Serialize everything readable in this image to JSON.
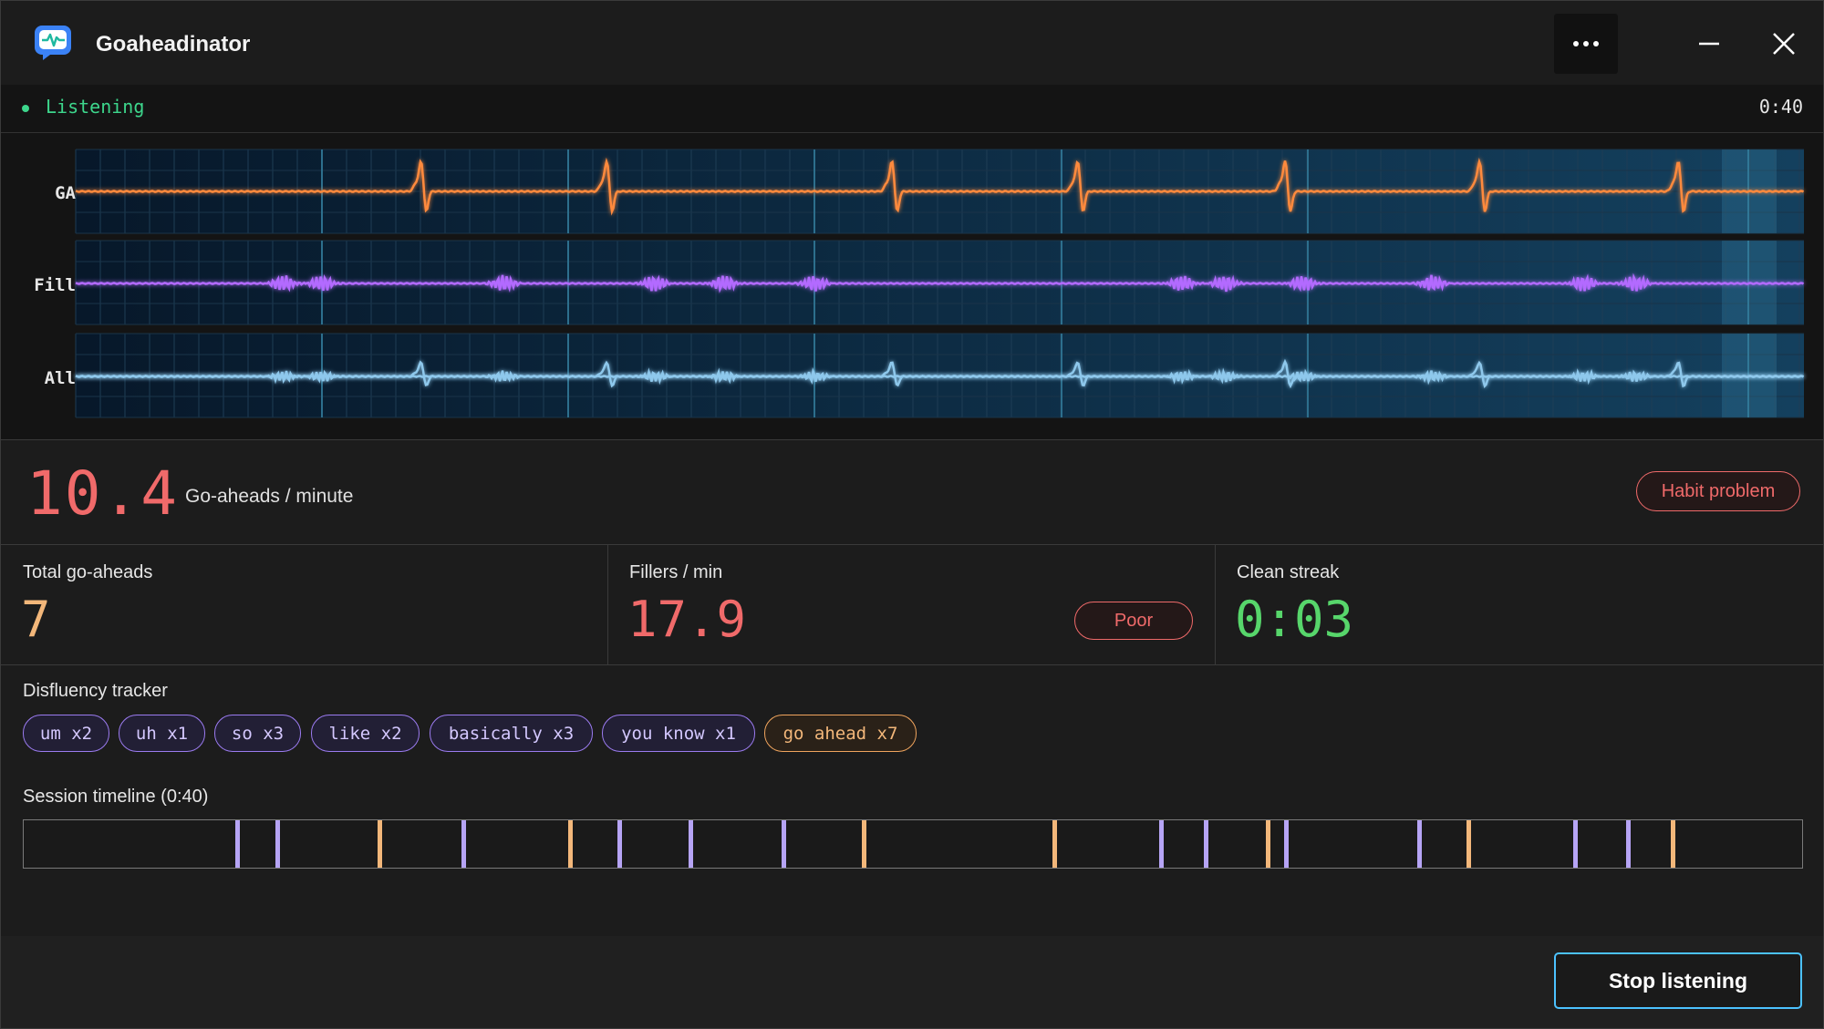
{
  "app": {
    "title": "Goaheadinator"
  },
  "status": {
    "text": "Listening",
    "elapsed": "0:40"
  },
  "monitor": {
    "channels": [
      {
        "label": "GA",
        "color": "#ff8a3d"
      },
      {
        "label": "Fill",
        "color": "#b36bff"
      },
      {
        "label": "All",
        "color": "#8ec8ec"
      }
    ]
  },
  "rate": {
    "value": "10.4",
    "label": "Go-aheads / minute",
    "badge": "Habit problem"
  },
  "stats": {
    "total": {
      "label": "Total go-aheads",
      "value": "7"
    },
    "fillers": {
      "label": "Fillers / min",
      "value": "17.9",
      "badge": "Poor"
    },
    "streak": {
      "label": "Clean streak",
      "value": "0:03"
    }
  },
  "disfluency": {
    "label": "Disfluency tracker",
    "chips": [
      {
        "text": "um x2",
        "kind": "filler"
      },
      {
        "text": "uh x1",
        "kind": "filler"
      },
      {
        "text": "so x3",
        "kind": "filler"
      },
      {
        "text": "like x2",
        "kind": "filler"
      },
      {
        "text": "basically x3",
        "kind": "filler"
      },
      {
        "text": "you know x1",
        "kind": "filler"
      },
      {
        "text": "go ahead x7",
        "kind": "goahead"
      }
    ]
  },
  "timeline": {
    "label": "Session timeline (0:40)",
    "duration_s": 40,
    "events": [
      {
        "t": 4.8,
        "kind": "filler"
      },
      {
        "t": 5.7,
        "kind": "filler"
      },
      {
        "t": 8.0,
        "kind": "goahead"
      },
      {
        "t": 9.9,
        "kind": "filler"
      },
      {
        "t": 12.3,
        "kind": "goahead"
      },
      {
        "t": 13.4,
        "kind": "filler"
      },
      {
        "t": 15.0,
        "kind": "filler"
      },
      {
        "t": 17.1,
        "kind": "filler"
      },
      {
        "t": 18.9,
        "kind": "goahead"
      },
      {
        "t": 23.2,
        "kind": "goahead"
      },
      {
        "t": 25.6,
        "kind": "filler"
      },
      {
        "t": 26.6,
        "kind": "filler"
      },
      {
        "t": 28.0,
        "kind": "goahead"
      },
      {
        "t": 28.4,
        "kind": "filler"
      },
      {
        "t": 31.4,
        "kind": "filler"
      },
      {
        "t": 32.5,
        "kind": "goahead"
      },
      {
        "t": 34.9,
        "kind": "filler"
      },
      {
        "t": 36.1,
        "kind": "filler"
      },
      {
        "t": 37.1,
        "kind": "goahead"
      }
    ],
    "colors": {
      "filler": "#b6a4f5",
      "goahead": "#f3b77a"
    }
  },
  "footer": {
    "stop_label": "Stop listening"
  }
}
